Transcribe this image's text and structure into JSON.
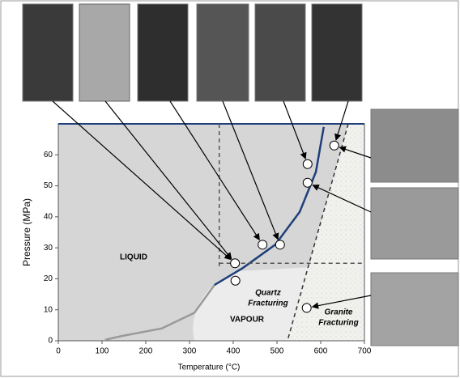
{
  "chart_data": {
    "type": "scatter",
    "xlabel": "Temperature (°C)",
    "ylabel": "Pressure (MPa)",
    "xlim": [
      0,
      700
    ],
    "ylim": [
      0,
      70
    ],
    "xticks": [
      0,
      100,
      200,
      300,
      400,
      500,
      600,
      700
    ],
    "yticks": [
      0,
      10,
      20,
      30,
      40,
      50,
      60
    ],
    "points": {
      "x": [
        404,
        405,
        467,
        507,
        570,
        570,
        631,
        568
      ],
      "y": [
        25,
        19.4,
        31,
        31,
        51,
        57,
        63,
        10.6
      ]
    },
    "curves": [
      {
        "color": "#9a9a9a",
        "style": "solid",
        "x": [
          107,
          144,
          237,
          311,
          357
        ],
        "y": [
          0.3,
          1.5,
          4,
          9,
          18
        ]
      },
      {
        "color": "#1f3f7a",
        "style": "solid",
        "x": [
          357,
          422,
          496,
          552,
          589,
          607
        ],
        "y": [
          18,
          23.5,
          31,
          41.6,
          54.5,
          69
        ]
      },
      {
        "color": "#555555",
        "style": "dashed",
        "x": [
          368,
          368
        ],
        "y": [
          70,
          24
        ]
      },
      {
        "color": "#555555",
        "style": "dashed",
        "x": [
          368,
          700
        ],
        "y": [
          25,
          25
        ]
      },
      {
        "color": "#333333",
        "style": "dashed",
        "x": [
          663,
          524
        ],
        "y": [
          70,
          0
        ]
      }
    ],
    "annotations": [
      "LIQUID",
      "VAPOUR",
      "Quartz",
      "Fracturing",
      "Granite",
      "Fracturing"
    ]
  }
}
